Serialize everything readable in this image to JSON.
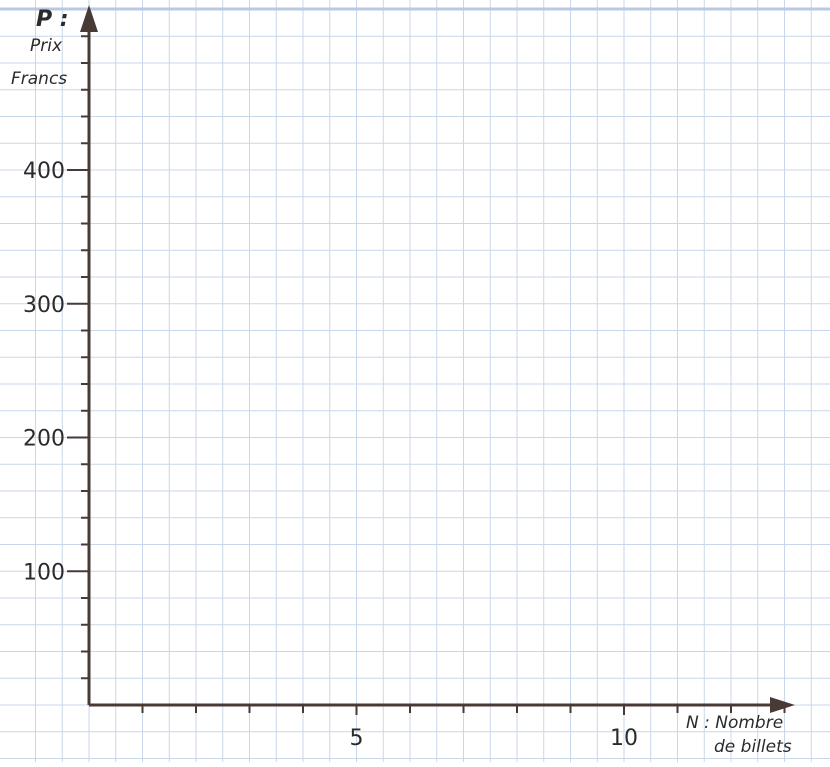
{
  "chart_data": {
    "type": "line",
    "series": [],
    "grid": true,
    "x": {
      "label": [
        "N : Nombre",
        "de billets"
      ],
      "range": [
        0,
        13.5
      ],
      "ticks": [
        1,
        2,
        3,
        4,
        5,
        6,
        7,
        8,
        9,
        10,
        11,
        12,
        13
      ],
      "tick_labels": [
        {
          "value": 5,
          "text": "5"
        },
        {
          "value": 10,
          "text": "10"
        }
      ]
    },
    "y": {
      "label": [
        "P :",
        "Prix",
        "Francs"
      ],
      "range": [
        0,
        520
      ],
      "ticks": [
        20,
        40,
        60,
        80,
        100,
        120,
        140,
        160,
        180,
        200,
        220,
        240,
        260,
        280,
        300,
        320,
        340,
        360,
        380,
        400,
        420,
        440,
        460,
        480,
        500
      ],
      "tick_labels": [
        {
          "value": 100,
          "text": "100"
        },
        {
          "value": 200,
          "text": "200"
        },
        {
          "value": 300,
          "text": "300"
        },
        {
          "value": 400,
          "text": "400"
        }
      ]
    },
    "colors": {
      "axis": "#4a3a36",
      "grid": "#c9d7ea",
      "background": "#ffffff",
      "text": "#2b2b2b"
    }
  }
}
